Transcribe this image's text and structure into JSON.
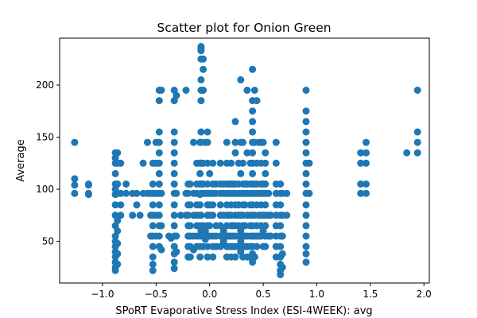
{
  "chart_data": {
    "type": "scatter",
    "title": "Scatter plot for Onion Green",
    "xlabel": "SPoRT Evaporative Stress Index (ESI-4WEEK): avg",
    "ylabel": "Average",
    "xlim": [
      -1.4,
      2.05
    ],
    "ylim": [
      10,
      245
    ],
    "xticks": [
      -1.0,
      -0.5,
      0.0,
      0.5,
      1.0,
      1.5,
      2.0
    ],
    "xtick_labels": [
      "−1.0",
      "−0.5",
      "0.0",
      "0.5",
      "1.0",
      "1.5",
      "2.0"
    ],
    "yticks": [
      50,
      100,
      150,
      200
    ],
    "ytick_labels": [
      "50",
      "100",
      "150",
      "200"
    ],
    "grid": false,
    "legend": "none",
    "marker_color": "#1f77b4",
    "points": [
      [
        -1.26,
        145
      ],
      [
        -1.26,
        110
      ],
      [
        -1.26,
        104
      ],
      [
        -1.26,
        96
      ],
      [
        -1.13,
        105
      ],
      [
        -1.13,
        104
      ],
      [
        -1.13,
        96
      ],
      [
        -1.13,
        95
      ],
      [
        -0.88,
        135
      ],
      [
        -0.88,
        130
      ],
      [
        -0.88,
        125
      ],
      [
        -0.88,
        115
      ],
      [
        -0.88,
        105
      ],
      [
        -0.88,
        100
      ],
      [
        -0.88,
        95
      ],
      [
        -0.88,
        85
      ],
      [
        -0.88,
        75
      ],
      [
        -0.88,
        65
      ],
      [
        -0.88,
        55
      ],
      [
        -0.88,
        50
      ],
      [
        -0.88,
        45
      ],
      [
        -0.88,
        40
      ],
      [
        -0.88,
        35
      ],
      [
        -0.88,
        30
      ],
      [
        -0.88,
        25
      ],
      [
        -0.88,
        22
      ],
      [
        -0.86,
        135
      ],
      [
        -0.86,
        125
      ],
      [
        -0.86,
        105
      ],
      [
        -0.86,
        96
      ],
      [
        -0.86,
        70
      ],
      [
        -0.86,
        60
      ],
      [
        -0.86,
        48
      ],
      [
        -0.86,
        38
      ],
      [
        -0.86,
        28
      ],
      [
        -0.83,
        125
      ],
      [
        -0.83,
        96
      ],
      [
        -0.83,
        85
      ],
      [
        -0.83,
        75
      ],
      [
        -0.78,
        105
      ],
      [
        -0.78,
        96
      ],
      [
        -0.72,
        96
      ],
      [
        -0.72,
        75
      ],
      [
        -0.68,
        96
      ],
      [
        -0.68,
        85
      ],
      [
        -0.65,
        75
      ],
      [
        -0.62,
        125
      ],
      [
        -0.62,
        96
      ],
      [
        -0.58,
        145
      ],
      [
        -0.58,
        96
      ],
      [
        -0.55,
        96
      ],
      [
        -0.55,
        75
      ],
      [
        -0.55,
        55
      ],
      [
        -0.53,
        125
      ],
      [
        -0.53,
        105
      ],
      [
        -0.53,
        96
      ],
      [
        -0.53,
        85
      ],
      [
        -0.53,
        75
      ],
      [
        -0.53,
        65
      ],
      [
        -0.53,
        55
      ],
      [
        -0.53,
        45
      ],
      [
        -0.53,
        35
      ],
      [
        -0.53,
        28
      ],
      [
        -0.53,
        22
      ],
      [
        -0.5,
        145
      ],
      [
        -0.5,
        125
      ],
      [
        -0.5,
        96
      ],
      [
        -0.5,
        75
      ],
      [
        -0.5,
        55
      ],
      [
        -0.47,
        195
      ],
      [
        -0.47,
        185
      ],
      [
        -0.47,
        155
      ],
      [
        -0.47,
        145
      ],
      [
        -0.47,
        135
      ],
      [
        -0.47,
        125
      ],
      [
        -0.47,
        115
      ],
      [
        -0.47,
        105
      ],
      [
        -0.47,
        96
      ],
      [
        -0.47,
        85
      ],
      [
        -0.47,
        75
      ],
      [
        -0.47,
        65
      ],
      [
        -0.47,
        55
      ],
      [
        -0.47,
        45
      ],
      [
        -0.45,
        195
      ],
      [
        -0.45,
        96
      ],
      [
        -0.45,
        65
      ],
      [
        -0.45,
        42
      ],
      [
        -0.38,
        55
      ],
      [
        -0.36,
        53
      ],
      [
        -0.33,
        195
      ],
      [
        -0.33,
        185
      ],
      [
        -0.33,
        155
      ],
      [
        -0.33,
        145
      ],
      [
        -0.33,
        135
      ],
      [
        -0.33,
        125
      ],
      [
        -0.33,
        115
      ],
      [
        -0.33,
        105
      ],
      [
        -0.33,
        96
      ],
      [
        -0.33,
        85
      ],
      [
        -0.33,
        75
      ],
      [
        -0.33,
        65
      ],
      [
        -0.33,
        55
      ],
      [
        -0.33,
        45
      ],
      [
        -0.33,
        38
      ],
      [
        -0.33,
        30
      ],
      [
        -0.33,
        24
      ],
      [
        -0.31,
        190
      ],
      [
        -0.31,
        96
      ],
      [
        -0.31,
        55
      ],
      [
        -0.31,
        40
      ],
      [
        -0.27,
        75
      ],
      [
        -0.22,
        195
      ],
      [
        -0.22,
        96
      ],
      [
        -0.22,
        75
      ],
      [
        -0.2,
        105
      ],
      [
        -0.2,
        96
      ],
      [
        -0.2,
        85
      ],
      [
        -0.2,
        75
      ],
      [
        -0.2,
        65
      ],
      [
        -0.2,
        55
      ],
      [
        -0.2,
        45
      ],
      [
        -0.2,
        35
      ],
      [
        -0.18,
        105
      ],
      [
        -0.18,
        85
      ],
      [
        -0.18,
        65
      ],
      [
        -0.18,
        55
      ],
      [
        -0.18,
        45
      ],
      [
        -0.18,
        35
      ],
      [
        -0.15,
        145
      ],
      [
        -0.15,
        96
      ],
      [
        -0.15,
        75
      ],
      [
        -0.15,
        55
      ],
      [
        -0.15,
        42
      ],
      [
        -0.12,
        125
      ],
      [
        -0.12,
        105
      ],
      [
        -0.12,
        96
      ],
      [
        -0.12,
        85
      ],
      [
        -0.12,
        75
      ],
      [
        -0.12,
        65
      ],
      [
        -0.12,
        55
      ],
      [
        -0.12,
        45
      ],
      [
        -0.09,
        145
      ],
      [
        -0.09,
        125
      ],
      [
        -0.09,
        115
      ],
      [
        -0.09,
        105
      ],
      [
        -0.09,
        95
      ],
      [
        -0.09,
        85
      ],
      [
        -0.09,
        75
      ],
      [
        -0.09,
        65
      ],
      [
        -0.09,
        55
      ],
      [
        -0.09,
        45
      ],
      [
        -0.09,
        35
      ],
      [
        -0.08,
        237
      ],
      [
        -0.08,
        235
      ],
      [
        -0.08,
        233
      ],
      [
        -0.08,
        225
      ],
      [
        -0.08,
        205
      ],
      [
        -0.08,
        195
      ],
      [
        -0.08,
        185
      ],
      [
        -0.08,
        155
      ],
      [
        -0.08,
        145
      ],
      [
        -0.08,
        125
      ],
      [
        -0.08,
        105
      ],
      [
        -0.08,
        96
      ],
      [
        -0.08,
        75
      ],
      [
        -0.08,
        60
      ],
      [
        -0.06,
        225
      ],
      [
        -0.06,
        215
      ],
      [
        -0.06,
        195
      ],
      [
        -0.06,
        125
      ],
      [
        -0.06,
        105
      ],
      [
        -0.06,
        96
      ],
      [
        -0.06,
        65
      ],
      [
        -0.06,
        55
      ],
      [
        -0.06,
        45
      ],
      [
        -0.04,
        145
      ],
      [
        -0.04,
        96
      ],
      [
        -0.04,
        60
      ],
      [
        -0.04,
        52
      ],
      [
        -0.02,
        155
      ],
      [
        -0.02,
        145
      ],
      [
        -0.02,
        125
      ],
      [
        -0.02,
        105
      ],
      [
        -0.02,
        96
      ],
      [
        -0.02,
        85
      ],
      [
        -0.02,
        75
      ],
      [
        -0.02,
        65
      ],
      [
        -0.02,
        55
      ],
      [
        -0.02,
        45
      ],
      [
        -0.02,
        35
      ],
      [
        0.0,
        115
      ],
      [
        0.0,
        96
      ],
      [
        0.0,
        85
      ],
      [
        0.0,
        75
      ],
      [
        0.0,
        65
      ],
      [
        0.0,
        55
      ],
      [
        0.03,
        125
      ],
      [
        0.03,
        105
      ],
      [
        0.03,
        96
      ],
      [
        0.03,
        85
      ],
      [
        0.03,
        75
      ],
      [
        0.03,
        55
      ],
      [
        0.03,
        45
      ],
      [
        0.03,
        35
      ],
      [
        0.06,
        105
      ],
      [
        0.06,
        96
      ],
      [
        0.06,
        65
      ],
      [
        0.06,
        55
      ],
      [
        0.06,
        45
      ],
      [
        0.1,
        125
      ],
      [
        0.1,
        105
      ],
      [
        0.1,
        96
      ],
      [
        0.1,
        85
      ],
      [
        0.1,
        75
      ],
      [
        0.1,
        65
      ],
      [
        0.1,
        55
      ],
      [
        0.1,
        45
      ],
      [
        0.13,
        105
      ],
      [
        0.13,
        96
      ],
      [
        0.13,
        75
      ],
      [
        0.13,
        60
      ],
      [
        0.13,
        50
      ],
      [
        0.16,
        145
      ],
      [
        0.16,
        125
      ],
      [
        0.16,
        105
      ],
      [
        0.16,
        96
      ],
      [
        0.16,
        85
      ],
      [
        0.16,
        75
      ],
      [
        0.16,
        65
      ],
      [
        0.16,
        55
      ],
      [
        0.16,
        45
      ],
      [
        0.16,
        35
      ],
      [
        0.18,
        105
      ],
      [
        0.18,
        96
      ],
      [
        0.18,
        75
      ],
      [
        0.18,
        55
      ],
      [
        0.18,
        45
      ],
      [
        0.2,
        125
      ],
      [
        0.2,
        105
      ],
      [
        0.2,
        96
      ],
      [
        0.2,
        85
      ],
      [
        0.2,
        75
      ],
      [
        0.2,
        65
      ],
      [
        0.2,
        55
      ],
      [
        0.2,
        45
      ],
      [
        0.2,
        35
      ],
      [
        0.22,
        105
      ],
      [
        0.22,
        96
      ],
      [
        0.22,
        65
      ],
      [
        0.22,
        55
      ],
      [
        0.22,
        45
      ],
      [
        0.24,
        165
      ],
      [
        0.24,
        145
      ],
      [
        0.24,
        135
      ],
      [
        0.24,
        105
      ],
      [
        0.24,
        96
      ],
      [
        0.24,
        85
      ],
      [
        0.24,
        75
      ],
      [
        0.24,
        65
      ],
      [
        0.24,
        55
      ],
      [
        0.24,
        45
      ],
      [
        0.24,
        35
      ],
      [
        0.27,
        125
      ],
      [
        0.27,
        105
      ],
      [
        0.27,
        96
      ],
      [
        0.27,
        85
      ],
      [
        0.27,
        75
      ],
      [
        0.27,
        65
      ],
      [
        0.27,
        55
      ],
      [
        0.27,
        45
      ],
      [
        0.29,
        205
      ],
      [
        0.29,
        145
      ],
      [
        0.29,
        115
      ],
      [
        0.29,
        96
      ],
      [
        0.29,
        75
      ],
      [
        0.29,
        60
      ],
      [
        0.29,
        50
      ],
      [
        0.29,
        40
      ],
      [
        0.31,
        145
      ],
      [
        0.31,
        125
      ],
      [
        0.31,
        105
      ],
      [
        0.31,
        96
      ],
      [
        0.31,
        85
      ],
      [
        0.31,
        75
      ],
      [
        0.31,
        65
      ],
      [
        0.31,
        55
      ],
      [
        0.31,
        45
      ],
      [
        0.31,
        35
      ],
      [
        0.33,
        105
      ],
      [
        0.33,
        96
      ],
      [
        0.33,
        85
      ],
      [
        0.33,
        65
      ],
      [
        0.33,
        55
      ],
      [
        0.33,
        45
      ],
      [
        0.35,
        195
      ],
      [
        0.35,
        135
      ],
      [
        0.35,
        105
      ],
      [
        0.35,
        96
      ],
      [
        0.35,
        75
      ],
      [
        0.35,
        55
      ],
      [
        0.35,
        45
      ],
      [
        0.35,
        35
      ],
      [
        0.38,
        125
      ],
      [
        0.38,
        105
      ],
      [
        0.38,
        96
      ],
      [
        0.38,
        85
      ],
      [
        0.38,
        75
      ],
      [
        0.38,
        65
      ],
      [
        0.38,
        55
      ],
      [
        0.38,
        45
      ],
      [
        0.38,
        35
      ],
      [
        0.4,
        215
      ],
      [
        0.4,
        185
      ],
      [
        0.4,
        175
      ],
      [
        0.4,
        165
      ],
      [
        0.4,
        155
      ],
      [
        0.4,
        145
      ],
      [
        0.4,
        135
      ],
      [
        0.4,
        125
      ],
      [
        0.4,
        115
      ],
      [
        0.4,
        105
      ],
      [
        0.4,
        96
      ],
      [
        0.4,
        85
      ],
      [
        0.4,
        75
      ],
      [
        0.4,
        65
      ],
      [
        0.4,
        55
      ],
      [
        0.4,
        45
      ],
      [
        0.4,
        38
      ],
      [
        0.4,
        30
      ],
      [
        0.42,
        195
      ],
      [
        0.42,
        145
      ],
      [
        0.42,
        105
      ],
      [
        0.42,
        96
      ],
      [
        0.42,
        75
      ],
      [
        0.42,
        55
      ],
      [
        0.42,
        35
      ],
      [
        0.44,
        185
      ],
      [
        0.44,
        125
      ],
      [
        0.44,
        105
      ],
      [
        0.44,
        96
      ],
      [
        0.44,
        85
      ],
      [
        0.44,
        65
      ],
      [
        0.44,
        55
      ],
      [
        0.44,
        45
      ],
      [
        0.46,
        145
      ],
      [
        0.46,
        96
      ],
      [
        0.46,
        75
      ],
      [
        0.46,
        55
      ],
      [
        0.48,
        145
      ],
      [
        0.48,
        125
      ],
      [
        0.48,
        105
      ],
      [
        0.48,
        96
      ],
      [
        0.48,
        85
      ],
      [
        0.48,
        75
      ],
      [
        0.48,
        65
      ],
      [
        0.48,
        55
      ],
      [
        0.5,
        145
      ],
      [
        0.5,
        105
      ],
      [
        0.5,
        96
      ],
      [
        0.5,
        75
      ],
      [
        0.5,
        60
      ],
      [
        0.5,
        45
      ],
      [
        0.52,
        135
      ],
      [
        0.52,
        125
      ],
      [
        0.52,
        115
      ],
      [
        0.52,
        105
      ],
      [
        0.52,
        96
      ],
      [
        0.52,
        85
      ],
      [
        0.52,
        75
      ],
      [
        0.52,
        65
      ],
      [
        0.52,
        55
      ],
      [
        0.52,
        45
      ],
      [
        0.55,
        96
      ],
      [
        0.55,
        75
      ],
      [
        0.55,
        55
      ],
      [
        0.57,
        75
      ],
      [
        0.57,
        55
      ],
      [
        0.62,
        145
      ],
      [
        0.62,
        125
      ],
      [
        0.62,
        105
      ],
      [
        0.62,
        96
      ],
      [
        0.62,
        85
      ],
      [
        0.62,
        75
      ],
      [
        0.62,
        65
      ],
      [
        0.62,
        55
      ],
      [
        0.62,
        45
      ],
      [
        0.62,
        35
      ],
      [
        0.66,
        105
      ],
      [
        0.66,
        96
      ],
      [
        0.66,
        85
      ],
      [
        0.66,
        75
      ],
      [
        0.66,
        65
      ],
      [
        0.66,
        55
      ],
      [
        0.66,
        45
      ],
      [
        0.66,
        35
      ],
      [
        0.66,
        28
      ],
      [
        0.66,
        22
      ],
      [
        0.66,
        18
      ],
      [
        0.68,
        96
      ],
      [
        0.68,
        75
      ],
      [
        0.68,
        55
      ],
      [
        0.68,
        38
      ],
      [
        0.68,
        25
      ],
      [
        0.72,
        96
      ],
      [
        0.72,
        75
      ],
      [
        0.9,
        195
      ],
      [
        0.9,
        175
      ],
      [
        0.9,
        165
      ],
      [
        0.9,
        155
      ],
      [
        0.9,
        145
      ],
      [
        0.9,
        135
      ],
      [
        0.9,
        125
      ],
      [
        0.9,
        115
      ],
      [
        0.9,
        105
      ],
      [
        0.9,
        96
      ],
      [
        0.9,
        85
      ],
      [
        0.9,
        75
      ],
      [
        0.9,
        65
      ],
      [
        0.9,
        55
      ],
      [
        0.9,
        45
      ],
      [
        0.9,
        38
      ],
      [
        0.9,
        30
      ],
      [
        0.93,
        125
      ],
      [
        0.93,
        96
      ],
      [
        1.41,
        135
      ],
      [
        1.41,
        125
      ],
      [
        1.41,
        105
      ],
      [
        1.41,
        96
      ],
      [
        1.46,
        145
      ],
      [
        1.46,
        135
      ],
      [
        1.46,
        125
      ],
      [
        1.46,
        105
      ],
      [
        1.46,
        96
      ],
      [
        1.84,
        135
      ],
      [
        1.94,
        195
      ],
      [
        1.94,
        155
      ],
      [
        1.94,
        145
      ],
      [
        1.94,
        135
      ]
    ]
  }
}
